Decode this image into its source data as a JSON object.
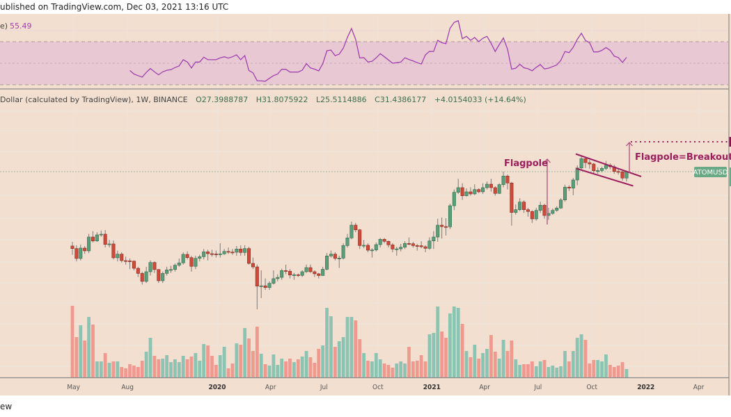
{
  "header": {
    "published": "ublished on TradingView.com, Dec 03, 2021 13:16 UTC",
    "footer": "ew"
  },
  "rsi_panel": {
    "label": "e)",
    "value": "55.49",
    "upper_band": 70,
    "lower_band": 30,
    "middle": 50,
    "color": "#a040b0"
  },
  "legend": {
    "title": "Dollar (calculated by TradingView), 1W, BINANCE",
    "open": "O27.3988787",
    "high": "H31.8075922",
    "low": "L25.5114886",
    "close": "C31.4386177",
    "change": "+4.0154033 (+14.64%)"
  },
  "symbol_badge": "ATOMUSD",
  "annotations": {
    "flagpole": "Flagpole",
    "breakout": "Flagpole=Breakout"
  },
  "colors": {
    "background": "#f2dfcf",
    "up": "#5a9e7a",
    "down": "#d04a3a",
    "volume_up": "#8cc4b4",
    "volume_down": "#f0998e",
    "annotation": "#9b1f5e",
    "rsi": "#a040b0",
    "badge": "#6aa986"
  },
  "chart_data": {
    "type": "candlestick",
    "interval": "1W",
    "y_scale": "log",
    "grid": true,
    "x_ticks": [
      {
        "label": "May",
        "date": "2019-05-01"
      },
      {
        "label": "Aug",
        "date": "2019-08-01"
      },
      {
        "label": "2020",
        "date": "2020-01-01",
        "year": true
      },
      {
        "label": "Apr",
        "date": "2020-04-01"
      },
      {
        "label": "Jul",
        "date": "2020-07-01"
      },
      {
        "label": "Oct",
        "date": "2020-10-01"
      },
      {
        "label": "2021",
        "date": "2021-01-01",
        "year": true
      },
      {
        "label": "Apr",
        "date": "2021-04-01"
      },
      {
        "label": "Jul",
        "date": "2021-07-01"
      },
      {
        "label": "Oct",
        "date": "2021-10-01"
      },
      {
        "label": "2022",
        "date": "2022-01-01",
        "year": true
      },
      {
        "label": "Apr",
        "date": "2022-04-01"
      }
    ],
    "dates": [
      "2019-04-29",
      "2019-05-06",
      "2019-05-13",
      "2019-05-20",
      "2019-05-27",
      "2019-06-03",
      "2019-06-10",
      "2019-06-17",
      "2019-06-24",
      "2019-07-01",
      "2019-07-08",
      "2019-07-15",
      "2019-07-22",
      "2019-07-29",
      "2019-08-05",
      "2019-08-12",
      "2019-08-19",
      "2019-08-26",
      "2019-09-02",
      "2019-09-09",
      "2019-09-16",
      "2019-09-23",
      "2019-09-30",
      "2019-10-07",
      "2019-10-14",
      "2019-10-21",
      "2019-10-28",
      "2019-11-04",
      "2019-11-11",
      "2019-11-18",
      "2019-11-25",
      "2019-12-02",
      "2019-12-09",
      "2019-12-16",
      "2019-12-23",
      "2019-12-30",
      "2020-01-06",
      "2020-01-13",
      "2020-01-20",
      "2020-01-27",
      "2020-02-03",
      "2020-02-10",
      "2020-02-17",
      "2020-02-24",
      "2020-03-02",
      "2020-03-09",
      "2020-03-16",
      "2020-03-23",
      "2020-03-30",
      "2020-04-06",
      "2020-04-13",
      "2020-04-20",
      "2020-04-27",
      "2020-05-04",
      "2020-05-11",
      "2020-05-18",
      "2020-05-25",
      "2020-06-01",
      "2020-06-08",
      "2020-06-15",
      "2020-06-22",
      "2020-06-29",
      "2020-07-06",
      "2020-07-13",
      "2020-07-20",
      "2020-07-27",
      "2020-08-03",
      "2020-08-10",
      "2020-08-17",
      "2020-08-24",
      "2020-08-31",
      "2020-09-07",
      "2020-09-14",
      "2020-09-21",
      "2020-09-28",
      "2020-10-05",
      "2020-10-12",
      "2020-10-19",
      "2020-10-26",
      "2020-11-02",
      "2020-11-09",
      "2020-11-16",
      "2020-11-23",
      "2020-11-30",
      "2020-12-07",
      "2020-12-14",
      "2020-12-21",
      "2020-12-28",
      "2021-01-04",
      "2021-01-11",
      "2021-01-18",
      "2021-01-25",
      "2021-02-01",
      "2021-02-08",
      "2021-02-15",
      "2021-02-22",
      "2021-03-01",
      "2021-03-08",
      "2021-03-15",
      "2021-03-22",
      "2021-03-29",
      "2021-04-05",
      "2021-04-12",
      "2021-04-19",
      "2021-04-26",
      "2021-05-03",
      "2021-05-10",
      "2021-05-17",
      "2021-05-24",
      "2021-05-31",
      "2021-06-07",
      "2021-06-14",
      "2021-06-21",
      "2021-06-28",
      "2021-07-05",
      "2021-07-12",
      "2021-07-19",
      "2021-07-26",
      "2021-08-02",
      "2021-08-09",
      "2021-08-16",
      "2021-08-23",
      "2021-08-30",
      "2021-09-06",
      "2021-09-13",
      "2021-09-20",
      "2021-09-27",
      "2021-10-04",
      "2021-10-11",
      "2021-10-18",
      "2021-10-25",
      "2021-11-01",
      "2021-11-08",
      "2021-11-15",
      "2021-11-22",
      "2021-11-29"
    ],
    "open": [
      6.4,
      6.06,
      4.9,
      6.12,
      5.77,
      7.76,
      7.13,
      8.12,
      8.24,
      6.62,
      6.69,
      4.97,
      5.38,
      4.68,
      4.66,
      4.63,
      3.97,
      3.56,
      3.0,
      3.69,
      4.5,
      3.87,
      3.04,
      3.56,
      3.84,
      3.87,
      4.24,
      4.46,
      5.35,
      4.99,
      4.14,
      4.91,
      5.09,
      5.65,
      5.43,
      5.4,
      5.38,
      5.41,
      5.7,
      5.62,
      5.6,
      6.0,
      5.57,
      6.06,
      4.41,
      4.09,
      2.71,
      2.73,
      2.63,
      2.88,
      3.18,
      3.27,
      3.78,
      3.73,
      3.44,
      3.46,
      3.41,
      3.69,
      4.03,
      3.69,
      3.53,
      3.4,
      3.89,
      5.17,
      5.38,
      4.91,
      4.94,
      6.46,
      7.61,
      10.0,
      9.05,
      6.46,
      6.5,
      5.85,
      5.88,
      6.59,
      7.39,
      7.07,
      6.56,
      6.0,
      6.02,
      6.24,
      6.76,
      6.72,
      6.46,
      6.44,
      6.3,
      6.09,
      7.13,
      7.76,
      10.0,
      9.7,
      9.66,
      15.16,
      20.21,
      22.33,
      18.76,
      20.42,
      19.53,
      21.45,
      20.42,
      22.33,
      24.05,
      22.33,
      19.74,
      23.81,
      28.63,
      24.67,
      13.13,
      13.93,
      16.41,
      13.93,
      13.4,
      11.43,
      13.73,
      15.32,
      12.31,
      12.87,
      13.73,
      14.44,
      17.16,
      22.56,
      22.1,
      26.3,
      34.02,
      41.52,
      38.15,
      37.03,
      32.05,
      32.2,
      33.72,
      36.11,
      34.89,
      31.58,
      31.3,
      27.4
    ],
    "high": [
      7.0,
      6.5,
      6.6,
      6.4,
      8.3,
      8.8,
      8.6,
      8.9,
      9.0,
      7.3,
      7.2,
      5.8,
      5.6,
      5.1,
      4.9,
      4.7,
      4.1,
      3.7,
      4.1,
      4.7,
      4.6,
      3.9,
      3.7,
      4.1,
      4.2,
      4.4,
      4.9,
      5.6,
      5.7,
      5.2,
      5.2,
      5.3,
      6.0,
      5.9,
      5.9,
      5.8,
      6.8,
      6.0,
      6.2,
      6.0,
      6.4,
      6.5,
      6.5,
      6.3,
      5.0,
      4.3,
      3.8,
      3.2,
      3.0,
      3.8,
      3.5,
      3.95,
      4.3,
      3.9,
      3.6,
      3.55,
      3.8,
      4.3,
      4.3,
      3.8,
      3.6,
      4.1,
      5.5,
      5.8,
      5.6,
      5.2,
      6.8,
      8.3,
      10.8,
      10.5,
      9.2,
      7.3,
      6.8,
      6.1,
      6.9,
      7.6,
      7.6,
      7.2,
      6.8,
      6.3,
      6.7,
      7.1,
      7.7,
      7.0,
      6.7,
      7.1,
      6.5,
      7.7,
      8.8,
      11.5,
      11.8,
      11.6,
      15.8,
      21.5,
      27.0,
      24.5,
      22.0,
      22.5,
      24.0,
      22.0,
      24.5,
      25.5,
      27.0,
      23.0,
      24.5,
      31.5,
      29.5,
      25.2,
      15.6,
      17.8,
      17.0,
      14.5,
      13.8,
      14.5,
      16.5,
      15.8,
      14.5,
      14.3,
      15.0,
      17.8,
      23.8,
      23.5,
      27.5,
      36.0,
      44.7,
      42.5,
      40.5,
      38.0,
      34.5,
      35.0,
      39.5,
      37.5,
      36.5,
      34.0,
      32.0,
      31.8075922
    ],
    "low": [
      5.3,
      4.6,
      4.7,
      5.4,
      5.5,
      6.9,
      7.0,
      7.8,
      6.2,
      6.2,
      4.8,
      4.6,
      4.5,
      4.3,
      3.9,
      3.8,
      3.3,
      2.8,
      2.9,
      3.4,
      3.6,
      2.9,
      2.9,
      3.4,
      3.6,
      3.7,
      4.1,
      4.3,
      4.8,
      3.7,
      3.9,
      4.6,
      4.8,
      4.7,
      5.1,
      5.0,
      5.0,
      5.3,
      5.4,
      5.3,
      5.2,
      5.2,
      5.2,
      4.3,
      3.9,
      1.65,
      2.1,
      2.5,
      2.5,
      2.8,
      3.0,
      3.1,
      3.5,
      3.2,
      3.1,
      3.3,
      3.3,
      3.6,
      3.6,
      3.3,
      3.2,
      3.4,
      3.8,
      5.0,
      4.7,
      4.0,
      4.8,
      6.2,
      7.4,
      8.6,
      6.0,
      6.1,
      5.6,
      5.0,
      5.7,
      6.2,
      6.8,
      6.2,
      5.6,
      5.2,
      5.7,
      6.0,
      6.5,
      6.2,
      5.8,
      6.1,
      5.6,
      5.9,
      6.0,
      7.0,
      7.5,
      8.0,
      9.2,
      13.8,
      19.5,
      17.2,
      18.5,
      18.8,
      19.0,
      19.8,
      19.5,
      21.5,
      20.5,
      18.8,
      19.5,
      22.5,
      21.5,
      9.9,
      12.5,
      13.5,
      13.0,
      12.0,
      10.5,
      11.0,
      13.0,
      11.5,
      11.2,
      12.5,
      13.3,
      14.2,
      16.5,
      20.8,
      19.0,
      23.5,
      33.0,
      34.0,
      33.5,
      30.5,
      30.0,
      31.0,
      32.5,
      33.0,
      30.0,
      29.5,
      26.0,
      25.5114886
    ],
    "close": [
      6.06,
      4.9,
      6.12,
      5.77,
      7.76,
      7.13,
      8.12,
      8.24,
      6.62,
      6.69,
      4.97,
      5.38,
      4.68,
      4.66,
      4.63,
      3.97,
      3.56,
      3.0,
      3.69,
      4.5,
      3.87,
      3.04,
      3.56,
      3.84,
      3.87,
      4.24,
      4.46,
      5.35,
      4.99,
      4.14,
      4.91,
      5.09,
      5.65,
      5.43,
      5.4,
      5.38,
      5.41,
      5.7,
      5.62,
      5.6,
      6.0,
      5.57,
      6.06,
      4.41,
      4.09,
      2.71,
      2.73,
      2.63,
      2.88,
      3.18,
      3.27,
      3.78,
      3.73,
      3.44,
      3.46,
      3.41,
      3.69,
      4.03,
      3.69,
      3.53,
      3.4,
      3.89,
      5.17,
      5.38,
      4.91,
      4.94,
      6.46,
      7.61,
      10.0,
      9.05,
      6.46,
      6.5,
      5.85,
      5.88,
      6.59,
      7.39,
      7.07,
      6.56,
      6.0,
      6.02,
      6.24,
      6.76,
      6.72,
      6.46,
      6.44,
      6.3,
      6.09,
      7.13,
      7.76,
      10.0,
      9.7,
      9.66,
      15.16,
      20.21,
      22.33,
      18.76,
      20.42,
      19.53,
      21.45,
      20.42,
      22.33,
      24.05,
      22.33,
      19.74,
      23.81,
      28.63,
      24.67,
      13.13,
      13.93,
      16.41,
      13.93,
      13.4,
      11.43,
      13.73,
      15.32,
      12.31,
      12.87,
      13.73,
      14.44,
      17.16,
      22.56,
      22.1,
      26.3,
      34.02,
      41.52,
      38.15,
      37.03,
      32.05,
      32.2,
      33.72,
      36.11,
      34.89,
      31.58,
      31.3,
      27.4,
      31.44
    ],
    "volume_relative": [
      103,
      58,
      75,
      53,
      87,
      76,
      23,
      23,
      35,
      21,
      23,
      23,
      15,
      13,
      19,
      17,
      15,
      24,
      37,
      57,
      31,
      26,
      27,
      32,
      22,
      26,
      22,
      31,
      26,
      30,
      35,
      24,
      48,
      46,
      31,
      18,
      32,
      44,
      13,
      20,
      49,
      47,
      71,
      56,
      38,
      73,
      34,
      19,
      17,
      33,
      18,
      27,
      23,
      27,
      22,
      26,
      30,
      38,
      29,
      21,
      41,
      46,
      100,
      88,
      44,
      52,
      58,
      87,
      87,
      82,
      55,
      35,
      24,
      23,
      35,
      26,
      20,
      18,
      14,
      20,
      23,
      20,
      44,
      23,
      24,
      32,
      23,
      62,
      64,
      102,
      66,
      57,
      92,
      102,
      100,
      77,
      38,
      29,
      47,
      27,
      35,
      41,
      61,
      37,
      27,
      54,
      38,
      53,
      26,
      18,
      19,
      19,
      23,
      16,
      23,
      25,
      15,
      17,
      14,
      16,
      38,
      23,
      38,
      57,
      62,
      54,
      20,
      25,
      25,
      23,
      33,
      18,
      15,
      17,
      22,
      12
    ],
    "rsi": {
      "first_date": "2019-08-05",
      "values": [
        43.3,
        40,
        38.5,
        37.1,
        41.5,
        45.1,
        42,
        39.3,
        42,
        43.5,
        44,
        46,
        47.5,
        53.3,
        51.1,
        45.6,
        51.1,
        51.1,
        55.6,
        53.3,
        53.3,
        53.3,
        55,
        56,
        54.8,
        56,
        57.8,
        53.3,
        57.1,
        43.3,
        41.1,
        33.8,
        33.6,
        33.3,
        36,
        38.5,
        40,
        44.4,
        44.4,
        41.8,
        41.8,
        41.8,
        43.6,
        49.6,
        45.6,
        44.5,
        42.9,
        49.6,
        61.6,
        62.2,
        57.1,
        58.4,
        64,
        74,
        82.2,
        72.2,
        54.9,
        55.3,
        51.1,
        51.8,
        55,
        58.9,
        56,
        53,
        50,
        50.5,
        51.1,
        55.1,
        53.5,
        52.2,
        50.5,
        49.3,
        57.8,
        61.1,
        60.9,
        71.3,
        69.1,
        68.1,
        82.5,
        87.9,
        89.5,
        72.8,
        75,
        71.3,
        73.9,
        70,
        73.2,
        75,
        68.5,
        60.9,
        67.4,
        73.5,
        63.1,
        44.5,
        45.4,
        49,
        45.8,
        44.9,
        43,
        46.2,
        48.8,
        44.7,
        45.4,
        46.9,
        48.4,
        52.7,
        60.9,
        59.8,
        64.8,
        72.2,
        77.8,
        71.1,
        69.1,
        60.5,
        60.5,
        62,
        64.6,
        62,
        56.6,
        55.3,
        50.8,
        55.49
      ]
    },
    "last_price": 31.4386177,
    "breakout_target_from_flag": true
  }
}
